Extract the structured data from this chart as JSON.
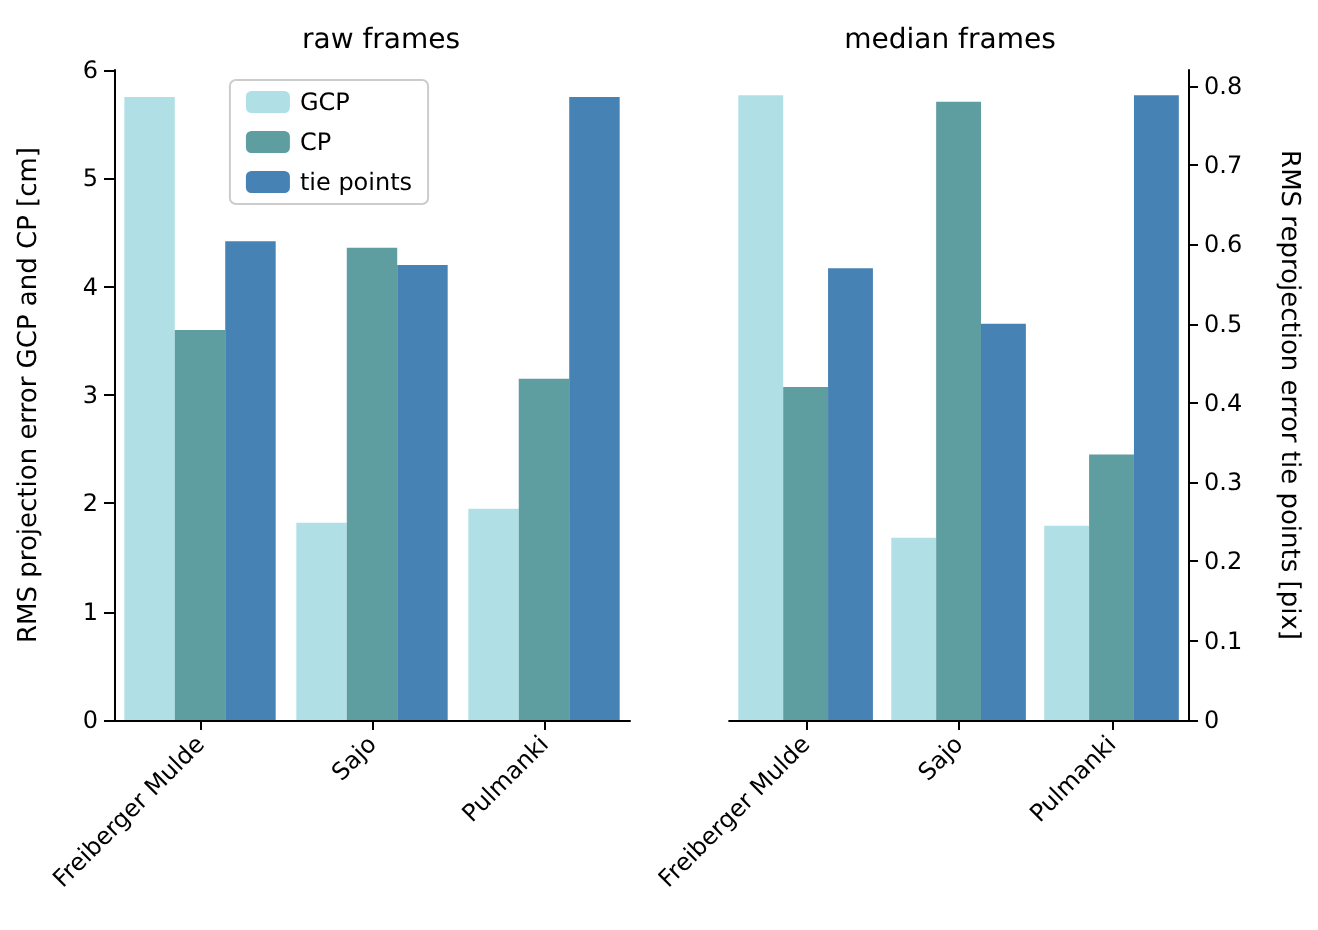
{
  "chart_data": [
    {
      "type": "bar",
      "title": "raw frames",
      "ylabel": "RMS projection error GCP and CP [cm]",
      "categories": [
        "Freiberger Mulde",
        "Sajo",
        "Pulmanki"
      ],
      "series": [
        {
          "name": "GCP",
          "color": "#b0e0e6",
          "values": [
            5.75,
            1.82,
            1.95
          ]
        },
        {
          "name": "CP",
          "color": "#5f9ea0",
          "values": [
            3.6,
            4.36,
            3.15
          ]
        },
        {
          "name": "tie points",
          "color": "#4682b4",
          "values": [
            4.42,
            4.2,
            5.75
          ]
        }
      ],
      "ylim": [
        0,
        6
      ],
      "yticks": [
        0,
        1,
        2,
        3,
        4,
        5,
        6
      ],
      "legend": "top",
      "grid": false
    },
    {
      "type": "bar",
      "title": "median frames",
      "y2label": "RMS reprojection error tie points [pix]",
      "categories": [
        "Freiberger Mulde",
        "Sajo",
        "Pulmanki"
      ],
      "series": [
        {
          "color": "#b0e0e6",
          "values": [
            0.788,
            0.23,
            0.245
          ],
          "axis": "y2"
        },
        {
          "color": "#5f9ea0",
          "values": [
            0.42,
            0.78,
            0.335
          ],
          "axis": "y2"
        },
        {
          "color": "#4682b4",
          "values": [
            0.57,
            0.5,
            0.788
          ],
          "axis": "y2"
        }
      ],
      "y2lim": [
        0,
        0.82
      ],
      "y2ticks": [
        0,
        0.1,
        0.2,
        0.3,
        0.4,
        0.5,
        0.6,
        0.7,
        0.8
      ],
      "grid": false
    }
  ]
}
